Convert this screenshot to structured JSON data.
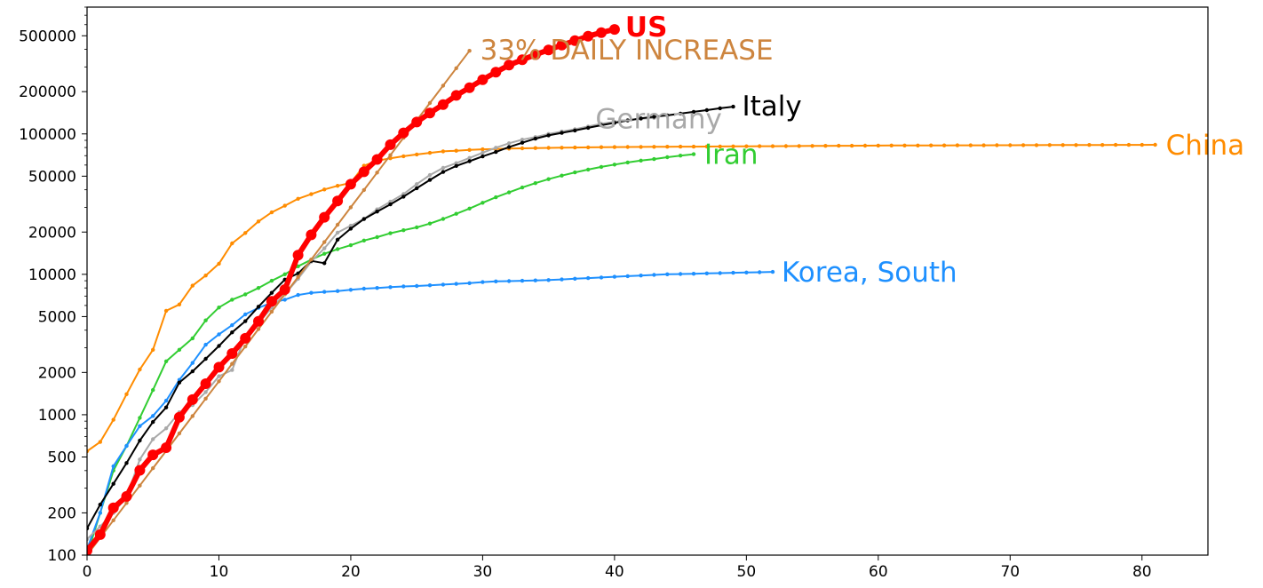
{
  "chart_data": {
    "type": "line",
    "title": "",
    "xlabel": "",
    "ylabel": "",
    "y_scale": "log",
    "xlim": [
      0,
      85
    ],
    "ylim": [
      100,
      800000
    ],
    "grid": false,
    "legend": "labels at line ends",
    "x_ticks": [
      0,
      10,
      20,
      30,
      40,
      50,
      60,
      70,
      80
    ],
    "y_ticks": [
      100,
      200,
      500,
      1000,
      2000,
      5000,
      10000,
      20000,
      50000,
      100000,
      200000,
      500000
    ],
    "series": [
      {
        "name": "China",
        "color": "#ff8c00",
        "marker": "small",
        "x": [
          0,
          1,
          2,
          3,
          4,
          5,
          6,
          7,
          8,
          9,
          10,
          11,
          12,
          13,
          14,
          15,
          16,
          17,
          18,
          19,
          20,
          21,
          22,
          23,
          24,
          25,
          26,
          27,
          28,
          29,
          30,
          31,
          32,
          33,
          34,
          35,
          36,
          37,
          38,
          39,
          40,
          41,
          42,
          43,
          44,
          45,
          46,
          47,
          48,
          49,
          50,
          51,
          52,
          53,
          54,
          55,
          56,
          57,
          58,
          59,
          60,
          61,
          62,
          63,
          64,
          65,
          66,
          67,
          68,
          69,
          70,
          71,
          72,
          73,
          74,
          75,
          76,
          77,
          78,
          79,
          80,
          81
        ],
        "y": [
          550,
          640,
          920,
          1400,
          2100,
          2900,
          5500,
          6100,
          8300,
          9800,
          11900,
          16600,
          19700,
          23800,
          27600,
          30800,
          34500,
          37200,
          40200,
          42700,
          44800,
          59300,
          64400,
          67100,
          69300,
          71400,
          73300,
          75100,
          75900,
          76900,
          77700,
          78100,
          78600,
          78900,
          79300,
          79500,
          79800,
          80000,
          80200,
          80400,
          80600,
          80700,
          80800,
          80900,
          81000,
          81100,
          81200,
          81300,
          81400,
          81500,
          81600,
          81700,
          81800,
          81900,
          82000,
          82100,
          82200,
          82300,
          82400,
          82500,
          82600,
          82650,
          82700,
          82750,
          82800,
          82850,
          82900,
          82950,
          83000,
          83050,
          83100,
          83150,
          83200,
          83250,
          83300,
          83350,
          83400,
          83450,
          83500,
          83550,
          83600,
          83700
        ],
        "label_text": "China"
      },
      {
        "name": "Iran",
        "color": "#32cd32",
        "marker": "small",
        "x": [
          0,
          1,
          2,
          3,
          4,
          5,
          6,
          7,
          8,
          9,
          10,
          11,
          12,
          13,
          14,
          15,
          16,
          17,
          18,
          19,
          20,
          21,
          22,
          23,
          24,
          25,
          26,
          27,
          28,
          29,
          30,
          31,
          32,
          33,
          34,
          35,
          36,
          37,
          38,
          39,
          40,
          41,
          42,
          43,
          44,
          45,
          46
        ],
        "y": [
          100,
          200,
          400,
          600,
          950,
          1500,
          2400,
          2900,
          3500,
          4700,
          5800,
          6600,
          7200,
          8000,
          9000,
          10000,
          11400,
          12700,
          14000,
          15100,
          16100,
          17400,
          18400,
          19600,
          20600,
          21600,
          23000,
          24800,
          27000,
          29400,
          32300,
          35400,
          38300,
          41500,
          44600,
          47600,
          50500,
          53200,
          55700,
          58200,
          60500,
          62600,
          64600,
          66200,
          68200,
          70000,
          71700
        ],
        "label_text": "Iran"
      },
      {
        "name": "Korea, South",
        "color": "#1e90ff",
        "marker": "small",
        "x": [
          0,
          1,
          2,
          3,
          4,
          5,
          6,
          7,
          8,
          9,
          10,
          11,
          12,
          13,
          14,
          15,
          16,
          17,
          18,
          19,
          20,
          21,
          22,
          23,
          24,
          25,
          26,
          27,
          28,
          29,
          30,
          31,
          32,
          33,
          34,
          35,
          36,
          37,
          38,
          39,
          40,
          41,
          42,
          43,
          44,
          45,
          46,
          47,
          48,
          49,
          50,
          51,
          52
        ],
        "y": [
          110,
          200,
          430,
          600,
          830,
          980,
          1260,
          1770,
          2340,
          3150,
          3740,
          4340,
          5190,
          5770,
          6280,
          6600,
          7130,
          7380,
          7500,
          7600,
          7750,
          7900,
          8000,
          8100,
          8200,
          8250,
          8350,
          8450,
          8550,
          8650,
          8800,
          8900,
          8950,
          9000,
          9050,
          9100,
          9200,
          9300,
          9400,
          9500,
          9600,
          9700,
          9800,
          9900,
          10000,
          10050,
          10100,
          10150,
          10200,
          10250,
          10300,
          10350,
          10400
        ],
        "label_text": "Korea, South"
      },
      {
        "name": "Germany",
        "color": "#a9a9a9",
        "marker": "small",
        "x": [
          0,
          1,
          2,
          3,
          4,
          5,
          6,
          7,
          8,
          9,
          10,
          11,
          12,
          13,
          14,
          15,
          16,
          17,
          18,
          19,
          20,
          21,
          22,
          23,
          24,
          25,
          26,
          27,
          28,
          29,
          30,
          31,
          32,
          33,
          34,
          35,
          36,
          37,
          38,
          39,
          40,
          41,
          42,
          43
        ],
        "y": [
          130,
          160,
          200,
          260,
          480,
          670,
          800,
          1040,
          1170,
          1450,
          1880,
          2080,
          3600,
          4500,
          5800,
          7200,
          9300,
          12300,
          15300,
          19800,
          22200,
          24800,
          29000,
          32900,
          37300,
          43900,
          50900,
          57300,
          61900,
          67400,
          73500,
          79700,
          85800,
          91100,
          95000,
          100000,
          104000,
          108000,
          113000,
          118000,
          122000,
          125000,
          128000,
          130000
        ],
        "label_text": "Germany"
      },
      {
        "name": "Italy",
        "color": "#000000",
        "marker": "small",
        "x": [
          0,
          1,
          2,
          3,
          4,
          5,
          6,
          7,
          8,
          9,
          10,
          11,
          12,
          13,
          14,
          15,
          16,
          17,
          18,
          19,
          20,
          21,
          22,
          23,
          24,
          25,
          26,
          27,
          28,
          29,
          30,
          31,
          32,
          33,
          34,
          35,
          36,
          37,
          38,
          39,
          40,
          41,
          42,
          43,
          44,
          45,
          46,
          47,
          48,
          49
        ],
        "y": [
          155,
          229,
          322,
          453,
          655,
          888,
          1128,
          1694,
          2036,
          2502,
          3089,
          3858,
          4636,
          5883,
          7375,
          9172,
          10149,
          12462,
          12000,
          17660,
          21157,
          24747,
          27980,
          31506,
          35713,
          41035,
          47021,
          53578,
          59138,
          63927,
          69176,
          74386,
          80589,
          86498,
          92472,
          97689,
          101739,
          105792,
          110574,
          115242,
          119827,
          124632,
          128948,
          132547,
          135586,
          139422,
          143626,
          147577,
          152271,
          156363
        ],
        "label_text": "Italy"
      },
      {
        "name": "33% DAILY INCREASE",
        "color": "#cd853f",
        "marker": "small",
        "x": [
          0,
          1,
          2,
          3,
          4,
          5,
          6,
          7,
          8,
          9,
          10,
          11,
          12,
          13,
          14,
          15,
          16,
          17,
          18,
          19,
          20,
          21,
          22,
          23,
          24,
          25,
          26,
          27,
          28,
          29
        ],
        "y": [
          100,
          133,
          177,
          235,
          313,
          416,
          553,
          736,
          979,
          1302,
          1731,
          2303,
          3063,
          4074,
          5418,
          7206,
          9584,
          12747,
          16954,
          22548,
          29989,
          39886,
          53048,
          70554,
          93837,
          124803,
          165988,
          220764,
          293616,
          390510
        ],
        "label_text": "33% DAILY INCREASE"
      },
      {
        "name": "US",
        "color": "#ff0000",
        "marker": "large",
        "x": [
          0,
          1,
          2,
          3,
          4,
          5,
          6,
          7,
          8,
          9,
          10,
          11,
          12,
          13,
          14,
          15,
          16,
          17,
          18,
          19,
          20,
          21,
          22,
          23,
          24,
          25,
          26,
          27,
          28,
          29,
          30,
          31,
          32,
          33,
          34,
          35,
          36,
          37,
          38,
          39,
          40
        ],
        "y": [
          108,
          140,
          217,
          262,
          402,
          518,
          583,
          959,
          1281,
          1663,
          2179,
          2727,
          3499,
          4632,
          6421,
          7786,
          13680,
          19101,
          25493,
          33276,
          43847,
          53740,
          65778,
          83836,
          101657,
          121478,
          140886,
          161807,
          188172,
          213372,
          243453,
          275586,
          308850,
          337072,
          366667,
          396223,
          429052,
          461437,
          496535,
          526396,
          555313
        ],
        "label_text": "US"
      }
    ]
  }
}
